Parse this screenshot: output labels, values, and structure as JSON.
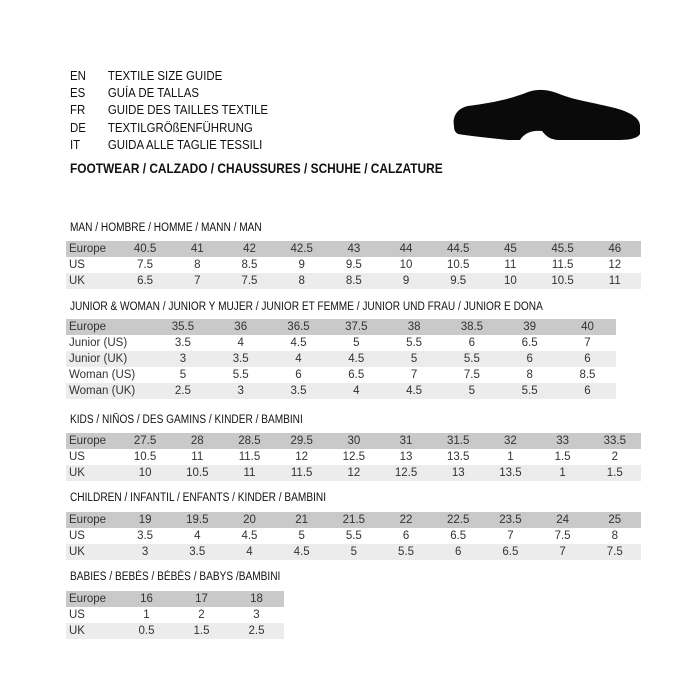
{
  "guide_titles": [
    {
      "code": "EN",
      "title": "TEXTILE SIZE GUIDE"
    },
    {
      "code": "ES",
      "title": "GUÍA DE TALLAS"
    },
    {
      "code": "FR",
      "title": "GUIDE DES TAILLES TEXTILE"
    },
    {
      "code": "DE",
      "title": "TEXTILGRÖßENFÜHRUNG"
    },
    {
      "code": "IT",
      "title": "GUIDA ALLE TAGLIE TESSILI"
    }
  ],
  "footwear_heading": "FOOTWEAR / CALZADO / CHAUSSURES / SCHUHE / CALZATURE",
  "icon": "shoe-icon",
  "colors": {
    "header_row": "#c9c9c9",
    "alt_row": "#ececec"
  },
  "sections": [
    {
      "title": "MAN / HOMBRE / HOMME / MANN / MAN",
      "rows": [
        {
          "label": "Europe",
          "values": [
            "40.5",
            "41",
            "42",
            "42.5",
            "43",
            "44",
            "44.5",
            "45",
            "45.5",
            "46"
          ]
        },
        {
          "label": "US",
          "values": [
            "7.5",
            "8",
            "8.5",
            "9",
            "9.5",
            "10",
            "10.5",
            "11",
            "11.5",
            "12"
          ]
        },
        {
          "label": "UK",
          "values": [
            "6.5",
            "7",
            "7.5",
            "8",
            "8.5",
            "9",
            "9.5",
            "10",
            "10.5",
            "11"
          ]
        }
      ]
    },
    {
      "title": "JUNIOR & WOMAN / JUNIOR Y MUJER / JUNIOR ET FEMME / JUNIOR UND FRAU / JUNIOR E DONA",
      "rows": [
        {
          "label": "Europe",
          "values": [
            "35.5",
            "36",
            "36.5",
            "37.5",
            "38",
            "38.5",
            "39",
            "40"
          ]
        },
        {
          "label": "Junior (US)",
          "values": [
            "3.5",
            "4",
            "4.5",
            "5",
            "5.5",
            "6",
            "6.5",
            "7"
          ]
        },
        {
          "label": "Junior (UK)",
          "values": [
            "3",
            "3.5",
            "4",
            "4.5",
            "5",
            "5.5",
            "6",
            "6"
          ]
        },
        {
          "label": "Woman (US)",
          "values": [
            "5",
            "5.5",
            "6",
            "6.5",
            "7",
            "7.5",
            "8",
            "8.5"
          ]
        },
        {
          "label": "Woman (UK)",
          "values": [
            "2.5",
            "3",
            "3.5",
            "4",
            "4.5",
            "5",
            "5.5",
            "6"
          ]
        }
      ]
    },
    {
      "title": "KIDS / NIÑOS / DES GAMINS / KINDER / BAMBINI",
      "rows": [
        {
          "label": "Europe",
          "values": [
            "27.5",
            "28",
            "28.5",
            "29.5",
            "30",
            "31",
            "31.5",
            "32",
            "33",
            "33.5"
          ]
        },
        {
          "label": "US",
          "values": [
            "10.5",
            "11",
            "11.5",
            "12",
            "12.5",
            "13",
            "13.5",
            "1",
            "1.5",
            "2"
          ]
        },
        {
          "label": "UK",
          "values": [
            "10",
            "10.5",
            "11",
            "11.5",
            "12",
            "12.5",
            "13",
            "13.5",
            "1",
            "1.5"
          ]
        }
      ]
    },
    {
      "title": "CHILDREN / INFANTIL / ENFANTS / KINDER / BAMBINI",
      "rows": [
        {
          "label": "Europe",
          "values": [
            "19",
            "19.5",
            "20",
            "21",
            "21.5",
            "22",
            "22.5",
            "23.5",
            "24",
            "25"
          ]
        },
        {
          "label": "US",
          "values": [
            "3.5",
            "4",
            "4.5",
            "5",
            "5.5",
            "6",
            "6.5",
            "7",
            "7.5",
            "8"
          ]
        },
        {
          "label": "UK",
          "values": [
            "3",
            "3.5",
            "4",
            "4.5",
            "5",
            "5.5",
            "6",
            "6.5",
            "7",
            "7.5"
          ]
        }
      ]
    },
    {
      "title": "BABIES  / BEBÉS / BÉBÉS / BABYS /BAMBINI",
      "rows": [
        {
          "label": "Europe",
          "values": [
            "16",
            "17",
            "18"
          ]
        },
        {
          "label": "US",
          "values": [
            "1",
            "2",
            "3"
          ]
        },
        {
          "label": "UK",
          "values": [
            "0.5",
            "1.5",
            "2.5"
          ]
        }
      ]
    }
  ]
}
